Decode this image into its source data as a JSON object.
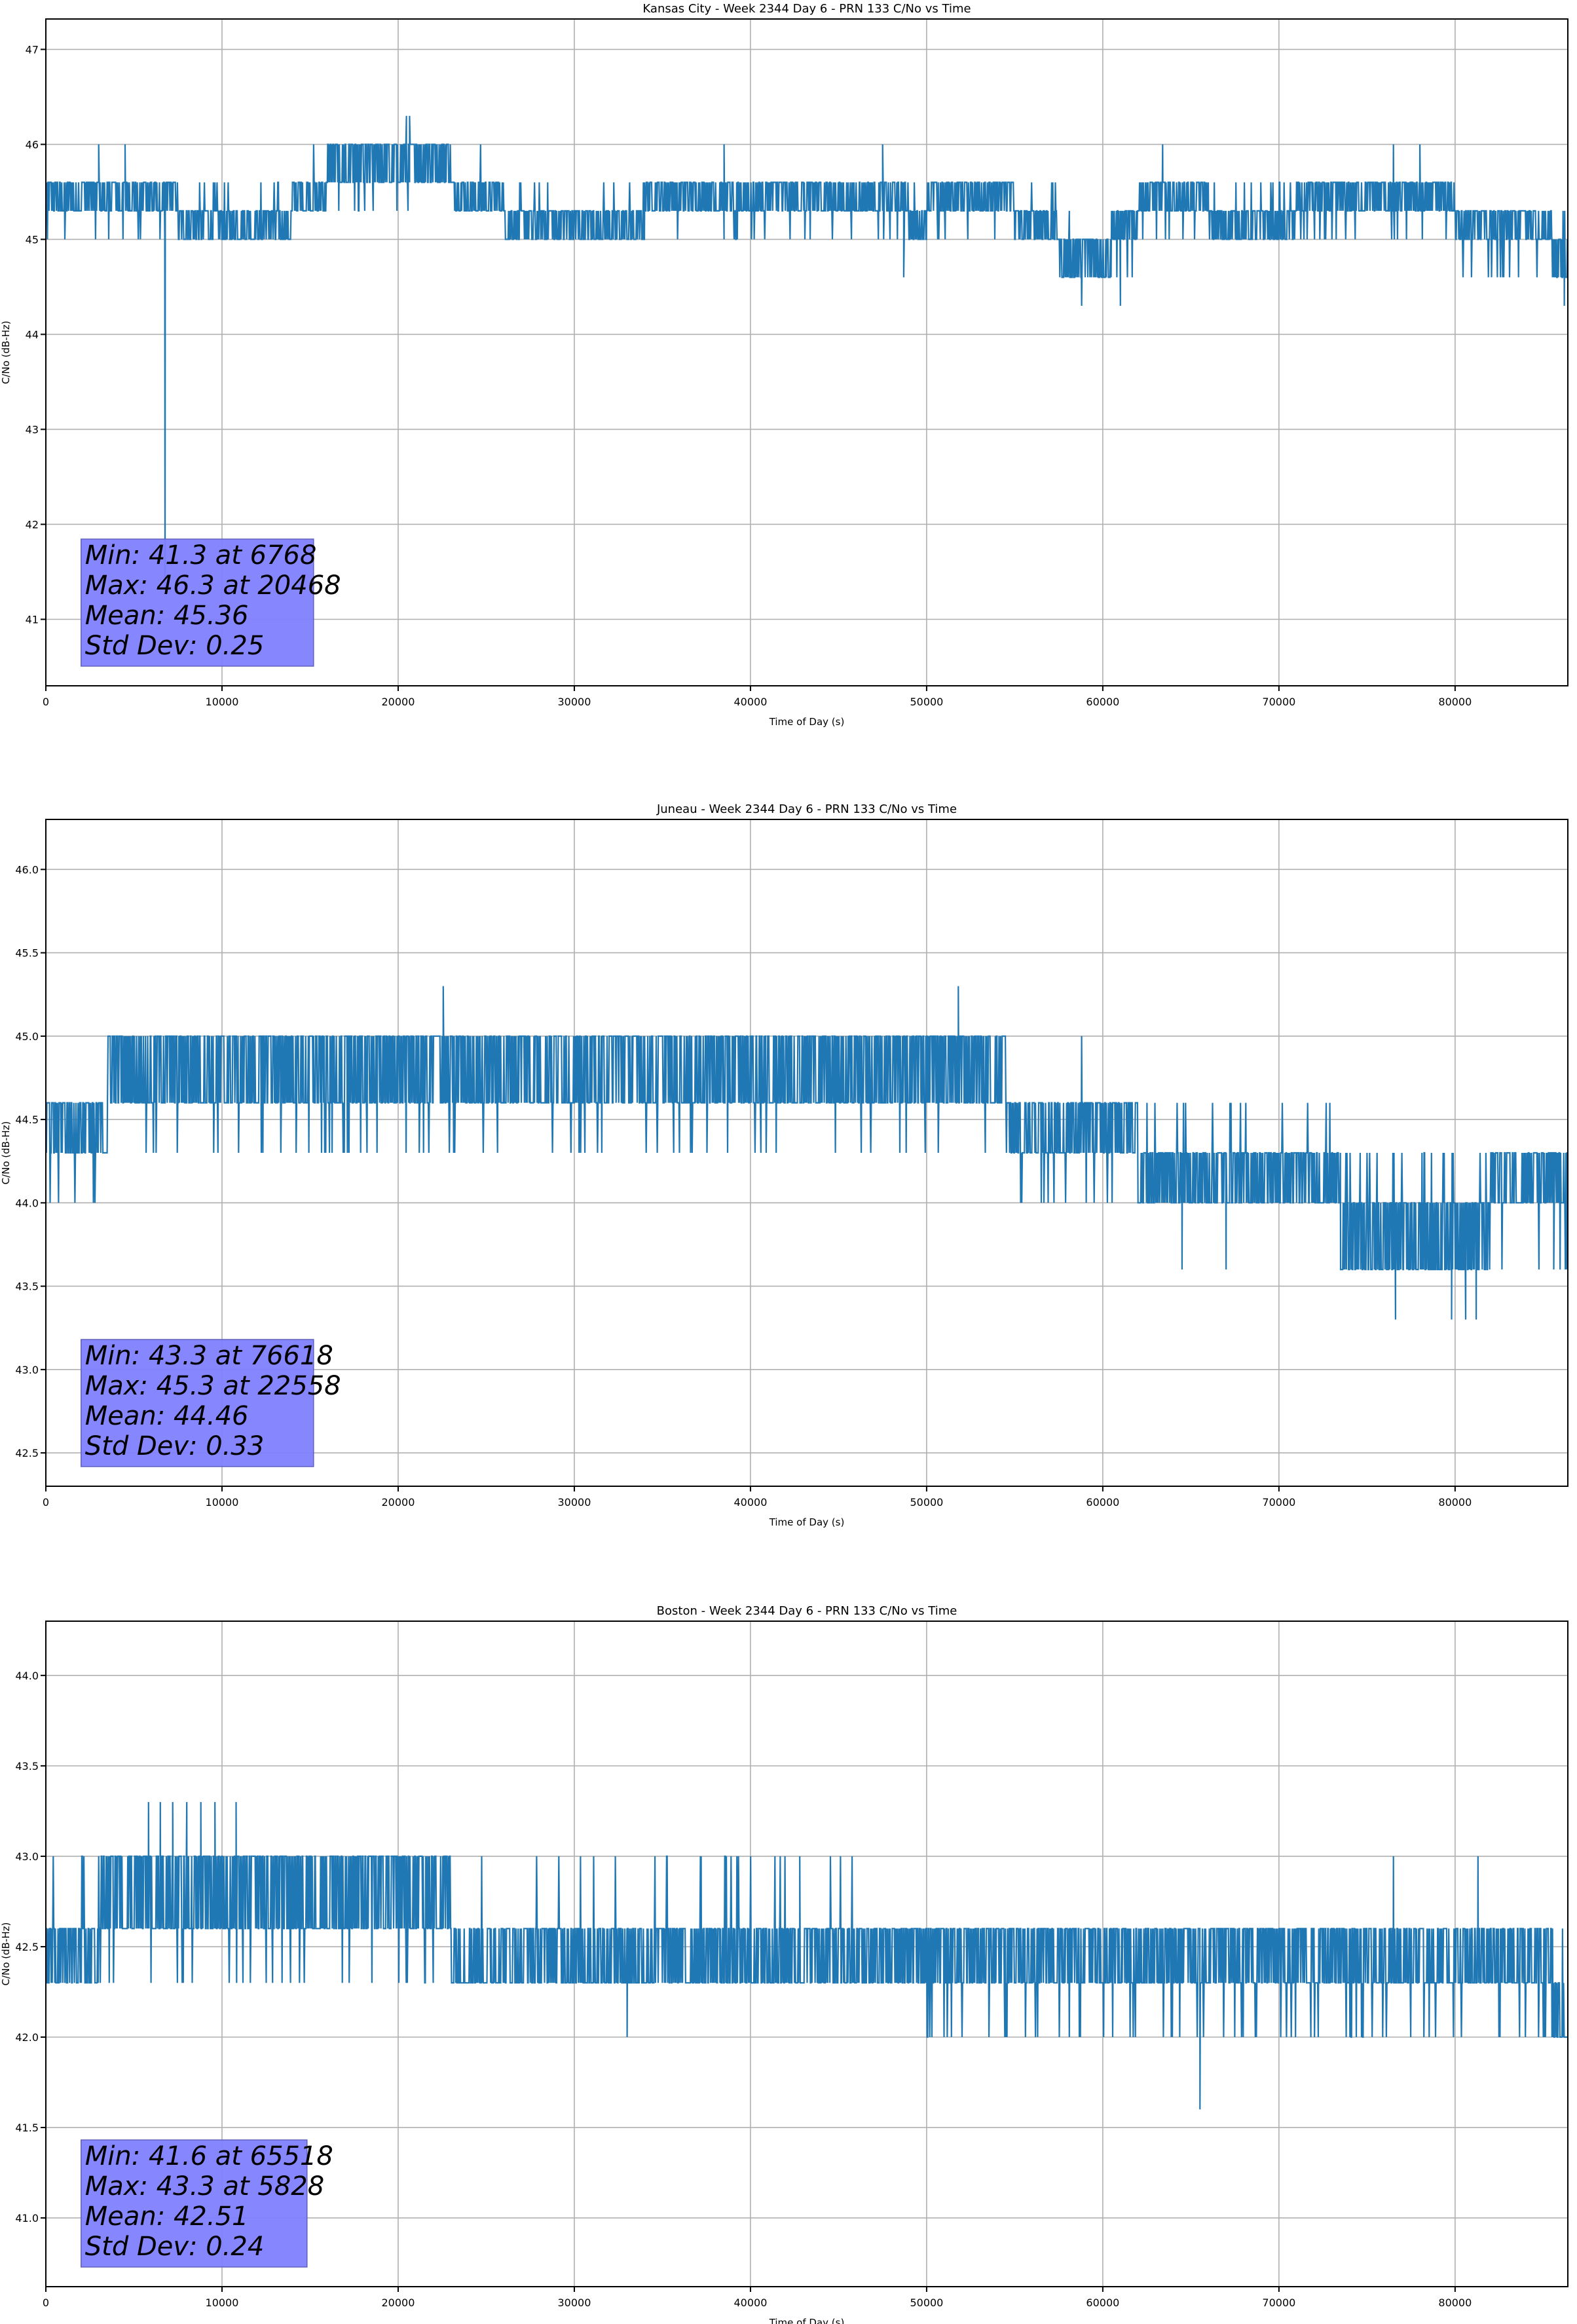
{
  "chart_data": [
    {
      "type": "line",
      "title": "Kansas City - Week 2344 Day 6 - PRN 133 C/No vs Time",
      "xlabel": "Time of Day (s)",
      "ylabel": "C/No (dB-Hz)",
      "xlim": [
        0,
        86400
      ],
      "ylim": [
        40.3,
        47.32
      ],
      "xticks": [
        0,
        10000,
        20000,
        30000,
        40000,
        50000,
        60000,
        70000,
        80000
      ],
      "yticks": [
        41,
        42,
        43,
        44,
        45,
        46,
        47
      ],
      "ytick_labels": [
        "41",
        "42",
        "43",
        "44",
        "45",
        "46",
        "47"
      ],
      "grid": true,
      "color": "#1f77b4",
      "level_bands": [
        {
          "start": 0,
          "end": 7500,
          "low": 45.3,
          "high": 45.6,
          "alt": 45.0
        },
        {
          "start": 7500,
          "end": 14000,
          "low": 45.0,
          "high": 45.3,
          "alt": 45.6
        },
        {
          "start": 14000,
          "end": 16000,
          "low": 45.3,
          "high": 45.6,
          "alt": 46.0
        },
        {
          "start": 16000,
          "end": 23000,
          "low": 45.6,
          "high": 46.0,
          "alt": 45.3
        },
        {
          "start": 23000,
          "end": 26000,
          "low": 45.3,
          "high": 45.6,
          "alt": 46.0
        },
        {
          "start": 26000,
          "end": 34000,
          "low": 45.0,
          "high": 45.3,
          "alt": 45.6
        },
        {
          "start": 34000,
          "end": 49000,
          "low": 45.3,
          "high": 45.6,
          "alt": 45.0
        },
        {
          "start": 49000,
          "end": 50000,
          "low": 45.0,
          "high": 45.3,
          "alt": 45.6
        },
        {
          "start": 50000,
          "end": 55000,
          "low": 45.3,
          "high": 45.6,
          "alt": 45.0
        },
        {
          "start": 55000,
          "end": 57500,
          "low": 45.0,
          "high": 45.3,
          "alt": 45.6
        },
        {
          "start": 57500,
          "end": 60500,
          "low": 44.6,
          "high": 45.0,
          "alt": 45.3
        },
        {
          "start": 60500,
          "end": 62000,
          "low": 45.0,
          "high": 45.3,
          "alt": 44.6
        },
        {
          "start": 62000,
          "end": 66000,
          "low": 45.3,
          "high": 45.6,
          "alt": 45.0
        },
        {
          "start": 66000,
          "end": 71000,
          "low": 45.0,
          "high": 45.3,
          "alt": 45.6
        },
        {
          "start": 71000,
          "end": 80000,
          "low": 45.3,
          "high": 45.6,
          "alt": 45.0
        },
        {
          "start": 80000,
          "end": 85500,
          "low": 45.0,
          "high": 45.3,
          "alt": 44.6
        },
        {
          "start": 85500,
          "end": 86400,
          "low": 44.6,
          "high": 45.0,
          "alt": 45.3
        }
      ],
      "spikes": [
        [
          6768,
          41.3
        ],
        [
          20468,
          46.3
        ],
        [
          20650,
          46.3
        ],
        [
          3000,
          46.0
        ],
        [
          4500,
          46.0
        ],
        [
          38500,
          46.0
        ],
        [
          47500,
          46.0
        ],
        [
          63400,
          46.0
        ],
        [
          76500,
          46.0
        ],
        [
          78000,
          46.0
        ],
        [
          48700,
          44.6
        ],
        [
          58800,
          44.3
        ],
        [
          61000,
          44.3
        ],
        [
          86200,
          44.3
        ]
      ],
      "stats": {
        "min": "Min: 41.3 at 6768",
        "max": "Max: 46.3 at 20468",
        "mean": "Mean: 45.36",
        "std": "Std Dev: 0.25"
      },
      "stats_box_color": "#8080ff"
    },
    {
      "type": "line",
      "title": "Juneau - Week 2344 Day 6 - PRN 133 C/No vs Time",
      "xlabel": "Time of Day (s)",
      "ylabel": "C/No (dB-Hz)",
      "xlim": [
        0,
        86400
      ],
      "ylim": [
        42.3,
        46.3
      ],
      "xticks": [
        0,
        10000,
        20000,
        30000,
        40000,
        50000,
        60000,
        70000,
        80000
      ],
      "yticks": [
        42.5,
        43.0,
        43.5,
        44.0,
        44.5,
        45.0,
        45.5,
        46.0
      ],
      "ytick_labels": [
        "42.5",
        "43.0",
        "43.5",
        "44.0",
        "44.5",
        "45.0",
        "45.5",
        "46.0"
      ],
      "grid": true,
      "color": "#1f77b4",
      "level_bands": [
        {
          "start": 0,
          "end": 3500,
          "low": 44.3,
          "high": 44.6,
          "alt": 44.0
        },
        {
          "start": 3500,
          "end": 26000,
          "low": 44.6,
          "high": 45.0,
          "alt": 44.3
        },
        {
          "start": 26000,
          "end": 30000,
          "low": 44.6,
          "high": 45.0,
          "alt": 44.3
        },
        {
          "start": 30000,
          "end": 50000,
          "low": 44.6,
          "high": 45.0,
          "alt": 44.3
        },
        {
          "start": 50000,
          "end": 54500,
          "low": 44.6,
          "high": 45.0,
          "alt": 44.3
        },
        {
          "start": 54500,
          "end": 62000,
          "low": 44.3,
          "high": 44.6,
          "alt": 44.0
        },
        {
          "start": 62000,
          "end": 73500,
          "low": 44.0,
          "high": 44.3,
          "alt": 44.6
        },
        {
          "start": 73500,
          "end": 82000,
          "low": 43.6,
          "high": 44.0,
          "alt": 44.3
        },
        {
          "start": 82000,
          "end": 86400,
          "low": 44.0,
          "high": 44.3,
          "alt": 43.6
        }
      ],
      "spikes": [
        [
          22558,
          45.3
        ],
        [
          51800,
          45.3
        ],
        [
          58800,
          45.0
        ],
        [
          76618,
          43.3
        ],
        [
          79800,
          43.3
        ],
        [
          80600,
          43.3
        ],
        [
          81200,
          43.3
        ],
        [
          64500,
          43.6
        ],
        [
          67000,
          43.6
        ],
        [
          85600,
          43.6
        ]
      ],
      "stats": {
        "min": "Min: 43.3 at 76618",
        "max": "Max: 45.3 at 22558",
        "mean": "Mean: 44.46",
        "std": "Std Dev: 0.33"
      },
      "stats_box_color": "#8080ff"
    },
    {
      "type": "line",
      "title": "Boston - Week 2344 Day 6 - PRN 133 C/No vs Time",
      "xlabel": "Time of Day (s)",
      "ylabel": "C/No (dB-Hz)",
      "xlim": [
        0,
        86400
      ],
      "ylim": [
        40.62,
        44.3
      ],
      "xticks": [
        0,
        10000,
        20000,
        30000,
        40000,
        50000,
        60000,
        70000,
        80000
      ],
      "yticks": [
        41.0,
        41.5,
        42.0,
        42.5,
        43.0,
        43.5,
        44.0
      ],
      "ytick_labels": [
        "41.0",
        "41.5",
        "42.0",
        "42.5",
        "43.0",
        "43.5",
        "44.0"
      ],
      "grid": true,
      "color": "#1f77b4",
      "level_bands": [
        {
          "start": 0,
          "end": 3000,
          "low": 42.3,
          "high": 42.6,
          "alt": 43.0
        },
        {
          "start": 3000,
          "end": 23000,
          "low": 42.6,
          "high": 43.0,
          "alt": 42.3
        },
        {
          "start": 23000,
          "end": 47000,
          "low": 42.3,
          "high": 42.6,
          "alt": 43.0
        },
        {
          "start": 47000,
          "end": 85500,
          "low": 42.3,
          "high": 42.6,
          "alt": 42.0
        },
        {
          "start": 85500,
          "end": 86400,
          "low": 42.0,
          "high": 42.3,
          "alt": 42.6
        }
      ],
      "spikes": [
        [
          5828,
          43.3
        ],
        [
          6500,
          43.3
        ],
        [
          7200,
          43.3
        ],
        [
          8000,
          43.3
        ],
        [
          8800,
          43.3
        ],
        [
          9600,
          43.3
        ],
        [
          10800,
          43.3
        ],
        [
          65518,
          41.6
        ],
        [
          33000,
          42.0
        ],
        [
          37200,
          43.0
        ],
        [
          42800,
          43.0
        ],
        [
          76500,
          43.0
        ],
        [
          81300,
          43.0
        ]
      ],
      "stats": {
        "min": "Min: 41.6 at 65518",
        "max": "Max: 43.3 at 5828",
        "mean": "Mean: 42.51",
        "std": "Std Dev: 0.24"
      },
      "stats_box_color": "#8080ff"
    }
  ]
}
